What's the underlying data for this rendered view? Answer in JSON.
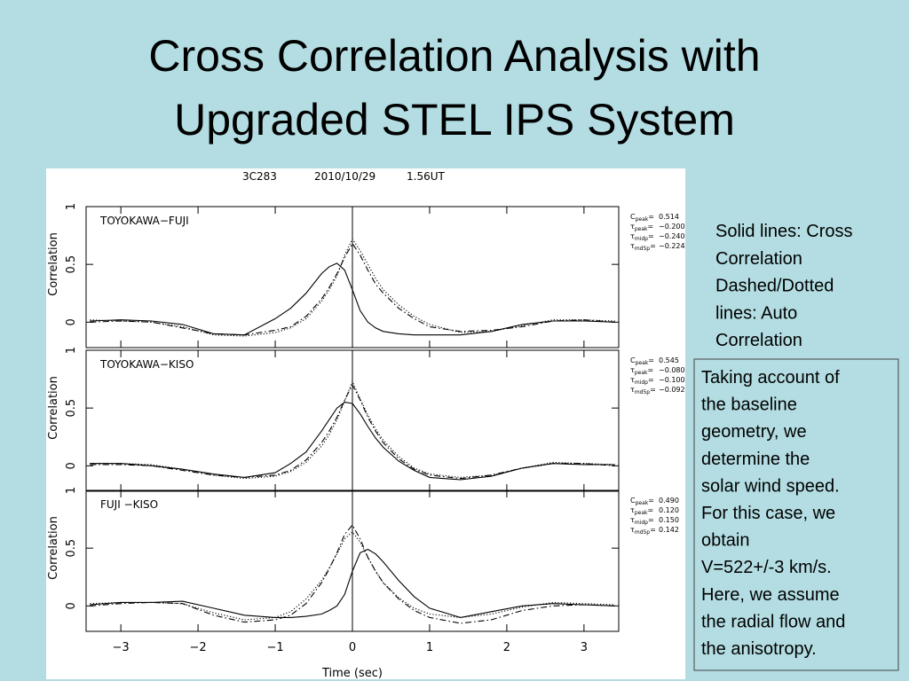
{
  "slide": {
    "title": [
      "Cross Correlation Analysis with",
      "Upgraded STEL IPS System"
    ],
    "note": [
      "Solid lines: Cross",
      "Correlation",
      "Dashed/Dotted",
      "lines: Auto",
      "Correlation"
    ],
    "box": [
      "Taking account of",
      "the baseline",
      "geometry, we",
      "determine the",
      "solar wind speed.",
      "For this case, we",
      "obtain",
      "V=522+/-3 km/s.",
      "Here, we assume",
      "the radial flow and",
      "the anisotropy."
    ]
  },
  "figure": {
    "source": "3C283",
    "date": "2010/10/29",
    "time": "1.56UT"
  },
  "chart_data": [
    {
      "type": "line",
      "title": "TOYOKAWA−FUJI",
      "ylabel": "Correlation",
      "params": [
        {
          "symbol": "C",
          "sub": "peak",
          "sign": "=",
          "value": "0.514"
        },
        {
          "symbol": "τ",
          "sub": "peak",
          "sign": "=",
          "value": "−0.200"
        },
        {
          "symbol": "τ",
          "sub": "midp",
          "sign": "=",
          "value": "−0.240"
        },
        {
          "symbol": "τ",
          "sub": "md5p",
          "sign": "=",
          "value": "−0.224"
        }
      ],
      "x": [
        -3.4,
        -3,
        -2.6,
        -2.2,
        -1.8,
        -1.4,
        -1,
        -0.8,
        -0.6,
        -0.4,
        -0.3,
        -0.2,
        -0.1,
        0,
        0.1,
        0.2,
        0.3,
        0.4,
        0.6,
        0.8,
        1,
        1.4,
        1.8,
        2.2,
        2.6,
        3,
        3.4
      ],
      "xlim": [
        -3.45,
        3.45
      ],
      "xticks": [
        -3,
        -2,
        -1,
        0,
        1,
        2,
        3
      ],
      "ylim": [
        -0.22,
        1
      ],
      "yticks": [
        0,
        0.5,
        1
      ],
      "series": [
        {
          "color": "#000",
          "style": "solid",
          "values": [
            0.01,
            0.02,
            0.01,
            -0.02,
            -0.1,
            -0.11,
            0.03,
            0.12,
            0.25,
            0.42,
            0.48,
            0.51,
            0.45,
            0.28,
            0.1,
            0.0,
            -0.05,
            -0.08,
            -0.1,
            -0.11,
            -0.11,
            -0.11,
            -0.08,
            -0.02,
            0.01,
            0.01,
            0.0
          ]
        },
        {
          "color": "#000",
          "style": "dashdot",
          "values": [
            0.0,
            0.01,
            0.0,
            -0.05,
            -0.1,
            -0.11,
            -0.07,
            -0.04,
            0.05,
            0.2,
            0.3,
            0.42,
            0.56,
            0.68,
            0.58,
            0.45,
            0.33,
            0.25,
            0.12,
            0.03,
            -0.04,
            -0.08,
            -0.07,
            -0.04,
            0.01,
            0.02,
            0.0
          ]
        },
        {
          "color": "#000",
          "style": "dotted",
          "values": [
            0.02,
            0.01,
            0.0,
            -0.04,
            -0.11,
            -0.12,
            -0.09,
            -0.05,
            0.03,
            0.18,
            0.28,
            0.4,
            0.58,
            0.72,
            0.62,
            0.5,
            0.38,
            0.28,
            0.15,
            0.05,
            -0.02,
            -0.09,
            -0.08,
            -0.03,
            0.02,
            0.02,
            0.01
          ]
        }
      ]
    },
    {
      "type": "line",
      "title": "TOYOKAWA−KISO",
      "ylabel": "Correlation",
      "params": [
        {
          "symbol": "C",
          "sub": "peak",
          "sign": "=",
          "value": "0.545"
        },
        {
          "symbol": "τ",
          "sub": "peak",
          "sign": "=",
          "value": "−0.080"
        },
        {
          "symbol": "τ",
          "sub": "midp",
          "sign": "=",
          "value": "−0.100"
        },
        {
          "symbol": "τ",
          "sub": "md5p",
          "sign": "=",
          "value": "−0.092"
        }
      ],
      "x": [
        -3.4,
        -3,
        -2.6,
        -2.2,
        -1.8,
        -1.4,
        -1,
        -0.8,
        -0.6,
        -0.4,
        -0.3,
        -0.2,
        -0.1,
        0,
        0.1,
        0.2,
        0.3,
        0.4,
        0.6,
        0.8,
        1,
        1.4,
        1.8,
        2.2,
        2.6,
        3,
        3.4
      ],
      "xlim": [
        -3.45,
        3.45
      ],
      "xticks": [
        -3,
        -2,
        -1,
        0,
        1,
        2,
        3
      ],
      "ylim": [
        -0.22,
        1
      ],
      "yticks": [
        0,
        0.5,
        1
      ],
      "series": [
        {
          "color": "#000",
          "style": "solid",
          "values": [
            0.02,
            0.02,
            0.0,
            -0.03,
            -0.07,
            -0.1,
            -0.06,
            0.02,
            0.12,
            0.3,
            0.4,
            0.5,
            0.55,
            0.54,
            0.45,
            0.34,
            0.24,
            0.16,
            0.04,
            -0.04,
            -0.1,
            -0.12,
            -0.09,
            -0.02,
            0.02,
            0.01,
            0.01
          ]
        },
        {
          "color": "#000",
          "style": "dashdot",
          "values": [
            0.01,
            0.01,
            0.0,
            -0.04,
            -0.08,
            -0.1,
            -0.08,
            -0.04,
            0.05,
            0.2,
            0.3,
            0.42,
            0.57,
            0.7,
            0.57,
            0.42,
            0.3,
            0.2,
            0.06,
            -0.03,
            -0.08,
            -0.11,
            -0.08,
            -0.02,
            0.02,
            0.02,
            0.0
          ]
        },
        {
          "color": "#000",
          "style": "dotted",
          "values": [
            0.02,
            0.02,
            0.01,
            -0.03,
            -0.08,
            -0.11,
            -0.09,
            -0.05,
            0.03,
            0.17,
            0.27,
            0.4,
            0.56,
            0.73,
            0.58,
            0.44,
            0.32,
            0.22,
            0.08,
            -0.02,
            -0.07,
            -0.1,
            -0.08,
            -0.02,
            0.03,
            0.02,
            0.01
          ]
        }
      ]
    },
    {
      "type": "line",
      "title": "FUJI     −KISO",
      "ylabel": "Correlation",
      "xlabel": "Time (sec)",
      "params": [
        {
          "symbol": "C",
          "sub": "peak",
          "sign": "=",
          "value": "0.490"
        },
        {
          "symbol": "τ",
          "sub": "peak",
          "sign": "=",
          "value": "0.120"
        },
        {
          "symbol": "τ",
          "sub": "midp",
          "sign": "=",
          "value": "0.150"
        },
        {
          "symbol": "τ",
          "sub": "md5p",
          "sign": "=",
          "value": "0.142"
        }
      ],
      "x": [
        -3.4,
        -3,
        -2.6,
        -2.2,
        -1.8,
        -1.4,
        -1,
        -0.8,
        -0.6,
        -0.4,
        -0.3,
        -0.2,
        -0.1,
        0,
        0.1,
        0.2,
        0.3,
        0.4,
        0.6,
        0.8,
        1,
        1.4,
        1.8,
        2.2,
        2.6,
        3,
        3.4
      ],
      "xlim": [
        -3.45,
        3.45
      ],
      "xticks": [
        {
          "value": -3,
          "label": "−3"
        },
        {
          "value": -2,
          "label": "−2"
        },
        {
          "value": -1,
          "label": "−1"
        },
        0,
        1,
        2,
        3
      ],
      "ylim": [
        -0.22,
        1
      ],
      "yticks": [
        0,
        0.5,
        1
      ],
      "series": [
        {
          "color": "#000",
          "style": "solid",
          "values": [
            0.01,
            0.03,
            0.03,
            0.04,
            -0.02,
            -0.08,
            -0.1,
            -0.1,
            -0.09,
            -0.07,
            -0.04,
            0.0,
            0.1,
            0.3,
            0.46,
            0.49,
            0.45,
            0.38,
            0.22,
            0.08,
            -0.02,
            -0.1,
            -0.05,
            0.0,
            0.02,
            0.01,
            0.0
          ]
        },
        {
          "color": "#000",
          "style": "dashdot",
          "values": [
            0.0,
            0.02,
            0.03,
            0.02,
            -0.08,
            -0.14,
            -0.12,
            -0.08,
            0.02,
            0.2,
            0.32,
            0.46,
            0.62,
            0.7,
            0.58,
            0.42,
            0.3,
            0.2,
            0.06,
            -0.04,
            -0.1,
            -0.15,
            -0.12,
            -0.04,
            0.0,
            0.01,
            0.0
          ]
        },
        {
          "color": "#000",
          "style": "dotted",
          "values": [
            0.02,
            0.03,
            0.03,
            0.02,
            -0.06,
            -0.12,
            -0.1,
            -0.05,
            0.06,
            0.22,
            0.33,
            0.45,
            0.58,
            0.64,
            0.55,
            0.42,
            0.3,
            0.2,
            0.07,
            -0.02,
            -0.07,
            -0.1,
            -0.07,
            -0.01,
            0.03,
            0.02,
            0.01
          ]
        }
      ]
    }
  ]
}
